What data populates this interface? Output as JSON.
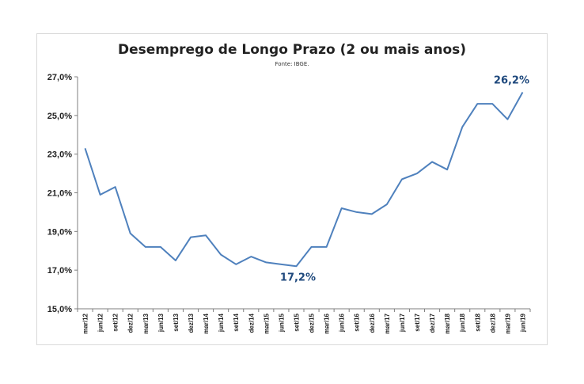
{
  "chart_data": {
    "type": "line",
    "title": "Desemprego de Longo Prazo (2 ou mais anos)",
    "subtitle": "Fonte: IBGE.",
    "xlabel": "",
    "ylabel": "",
    "ylim": [
      15.0,
      27.0
    ],
    "grid": false,
    "legend": "none",
    "y_ticks": [
      "15,0%",
      "17,0%",
      "19,0%",
      "21,0%",
      "23,0%",
      "25,0%",
      "27,0%"
    ],
    "categories": [
      "mar/12",
      "jun/12",
      "set/12",
      "dez/12",
      "mar/13",
      "jun/13",
      "set/13",
      "dez/13",
      "mar/14",
      "jun/14",
      "set/14",
      "dez/14",
      "mar/15",
      "jun/15",
      "set/15",
      "dez/15",
      "mar/16",
      "jun/16",
      "set/16",
      "dez/16",
      "mar/17",
      "jun/17",
      "set/17",
      "dez/17",
      "mar/18",
      "jun/18",
      "set/18",
      "dez/18",
      "mar/19",
      "jun/19"
    ],
    "series": [
      {
        "values": [
          23.3,
          20.9,
          21.3,
          18.9,
          18.2,
          18.2,
          17.5,
          18.7,
          18.8,
          17.8,
          17.3,
          17.7,
          17.4,
          17.3,
          17.2,
          18.2,
          18.2,
          20.2,
          20.0,
          19.9,
          20.4,
          21.7,
          22.0,
          22.6,
          22.2,
          24.4,
          25.6,
          25.6,
          24.8,
          26.2
        ],
        "color": "#4f81bd"
      }
    ],
    "annotations": [
      {
        "text": "17,2%",
        "category": "set/15",
        "value": 17.2,
        "color": "#1f497d"
      },
      {
        "text": "26,2%",
        "category": "jun/19",
        "value": 26.2,
        "color": "#1f497d"
      }
    ]
  }
}
